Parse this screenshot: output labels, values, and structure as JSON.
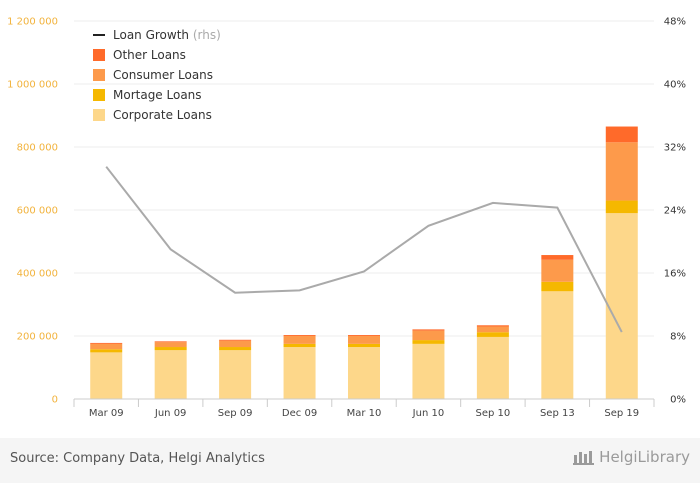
{
  "chart_data": {
    "type": "bar",
    "categories": [
      "Mar 09",
      "Jun 09",
      "Sep 09",
      "Dec 09",
      "Mar 10",
      "Jun 10",
      "Sep 10",
      "Sep 13",
      "Sep 19"
    ],
    "series": [
      {
        "name": "Corporate Loans",
        "color": "#fdd78a",
        "values": [
          148000,
          155000,
          155000,
          165000,
          165000,
          175000,
          197000,
          342000,
          590000
        ]
      },
      {
        "name": "Mortage Loans",
        "color": "#f5b800",
        "values": [
          10000,
          10000,
          10000,
          10000,
          10000,
          12000,
          15000,
          30000,
          40000
        ]
      },
      {
        "name": "Consumer Loans",
        "color": "#fd9a4b",
        "values": [
          17000,
          15000,
          20000,
          25000,
          25000,
          30000,
          18000,
          70000,
          185000
        ]
      },
      {
        "name": "Other Loans",
        "color": "#ff6a2a",
        "values": [
          3000,
          3000,
          3000,
          3000,
          3000,
          4000,
          4000,
          15000,
          50000
        ]
      }
    ],
    "line_series": {
      "name": "Loan Growth",
      "suffix": "(rhs)",
      "color": "#aaaaaa",
      "values": [
        29.5,
        19.0,
        13.5,
        13.8,
        16.2,
        22.0,
        24.9,
        24.3,
        8.5
      ]
    },
    "y_left": {
      "min": 0,
      "max": 1200000,
      "ticks": [
        "0",
        "200 000",
        "400 000",
        "600 000",
        "800 000",
        "1 000 000",
        "1 200 000"
      ]
    },
    "y_right": {
      "min": 0,
      "max": 48,
      "ticks": [
        "0%",
        "8%",
        "16%",
        "24%",
        "32%",
        "40%",
        "48%"
      ]
    },
    "legend_position": "top-left",
    "grid": true
  },
  "footer": {
    "source": "Source: Company Data, Helgi Analytics",
    "logo": "HelgiLibrary"
  }
}
